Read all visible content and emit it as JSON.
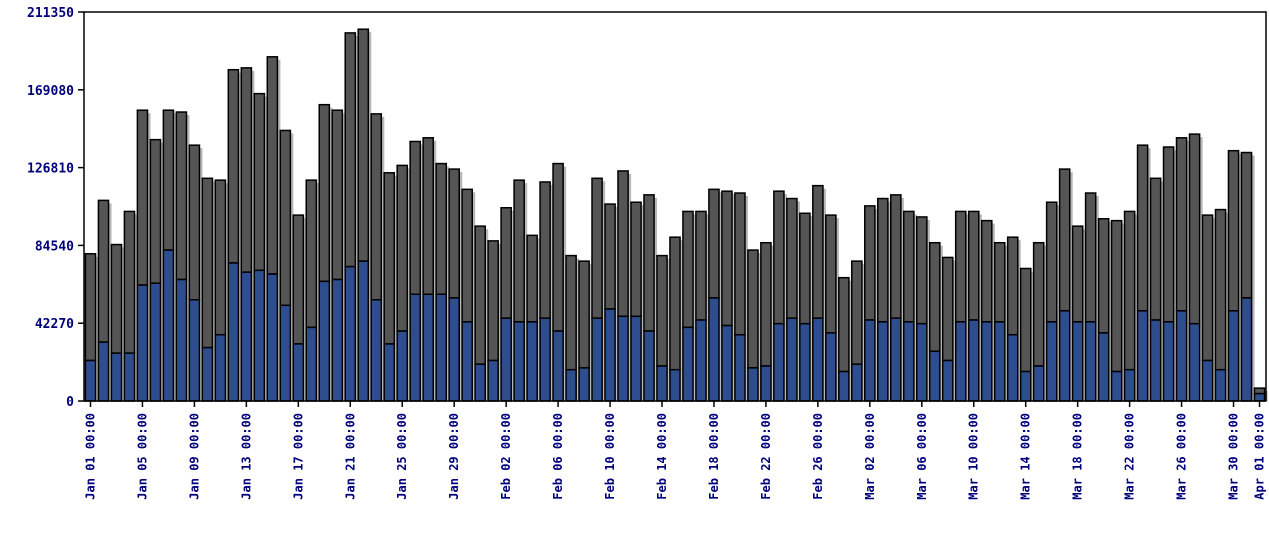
{
  "chart_data": {
    "type": "bar",
    "stacked": true,
    "ylim": [
      0,
      211350
    ],
    "yticks": [
      "0",
      "42270",
      "84540",
      "126810",
      "169080",
      "211350"
    ],
    "grid": false,
    "legend": "none",
    "colors": {
      "lower": "#2e4d8f",
      "upper": "#555555",
      "shadow": "#b8b8b8",
      "axis": "#000000",
      "tick_text": "#00007a"
    },
    "xticks": [
      {
        "index": 0,
        "label": "Jan 01 00:00"
      },
      {
        "index": 4,
        "label": "Jan 05 00:00"
      },
      {
        "index": 8,
        "label": "Jan 09 00:00"
      },
      {
        "index": 12,
        "label": "Jan 13 00:00"
      },
      {
        "index": 16,
        "label": "Jan 17 00:00"
      },
      {
        "index": 20,
        "label": "Jan 21 00:00"
      },
      {
        "index": 24,
        "label": "Jan 25 00:00"
      },
      {
        "index": 28,
        "label": "Jan 29 00:00"
      },
      {
        "index": 32,
        "label": "Feb 02 00:00"
      },
      {
        "index": 36,
        "label": "Feb 06 00:00"
      },
      {
        "index": 40,
        "label": "Feb 10 00:00"
      },
      {
        "index": 44,
        "label": "Feb 14 00:00"
      },
      {
        "index": 48,
        "label": "Feb 18 00:00"
      },
      {
        "index": 52,
        "label": "Feb 22 00:00"
      },
      {
        "index": 56,
        "label": "Feb 26 00:00"
      },
      {
        "index": 60,
        "label": "Mar 02 00:00"
      },
      {
        "index": 64,
        "label": "Mar 06 00:00"
      },
      {
        "index": 68,
        "label": "Mar 10 00:00"
      },
      {
        "index": 72,
        "label": "Mar 14 00:00"
      },
      {
        "index": 76,
        "label": "Mar 18 00:00"
      },
      {
        "index": 80,
        "label": "Mar 22 00:00"
      },
      {
        "index": 84,
        "label": "Mar 26 00:00"
      },
      {
        "index": 88,
        "label": "Mar 30 00:00"
      },
      {
        "index": 90,
        "label": "Apr 01 00:00"
      }
    ],
    "series": [
      {
        "values": [
          22000,
          32000,
          26000,
          26000,
          63000,
          64000,
          82000,
          66000,
          55000,
          29000,
          36000,
          75000,
          70000,
          71000,
          69000,
          52000,
          31000,
          40000,
          65000,
          66000,
          73000,
          76000,
          55000,
          31000,
          38000,
          58000,
          58000,
          58000,
          56000,
          43000,
          20000,
          22000,
          45000,
          43000,
          43000,
          45000,
          38000,
          17000,
          18000,
          45000,
          50000,
          46000,
          46000,
          38000,
          19000,
          17000,
          40000,
          44000,
          56000,
          41000,
          36000,
          18000,
          19000,
          42000,
          45000,
          42000,
          45000,
          37000,
          16000,
          20000,
          44000,
          43000,
          45000,
          43000,
          42000,
          27000,
          22000,
          43000,
          44000,
          43000,
          43000,
          36000,
          16000,
          19000,
          43000,
          49000,
          43000,
          43000,
          37000,
          16000,
          17000,
          49000,
          44000,
          43000,
          49000,
          42000,
          22000,
          17000,
          49000,
          56000,
          4000
        ]
      },
      {
        "values": [
          58000,
          77000,
          59000,
          77000,
          95000,
          78000,
          76000,
          91000,
          84000,
          92000,
          84000,
          105000,
          111000,
          96000,
          118000,
          95000,
          70000,
          80000,
          96000,
          92000,
          127000,
          126000,
          101000,
          93000,
          90000,
          83000,
          85000,
          71000,
          70000,
          72000,
          75000,
          65000,
          60000,
          77000,
          47000,
          74000,
          91000,
          62000,
          58000,
          76000,
          57000,
          79000,
          62000,
          74000,
          60000,
          72000,
          63000,
          59000,
          59000,
          73000,
          77000,
          64000,
          67000,
          72000,
          65000,
          60000,
          72000,
          64000,
          51000,
          56000,
          62000,
          67000,
          67000,
          60000,
          58000,
          59000,
          56000,
          60000,
          59000,
          55000,
          43000,
          53000,
          56000,
          67000,
          65000,
          77000,
          52000,
          70000,
          62000,
          82000,
          86000,
          90000,
          77000,
          95000,
          94000,
          103000,
          79000,
          87000,
          87000,
          79000,
          3000
        ]
      }
    ]
  }
}
